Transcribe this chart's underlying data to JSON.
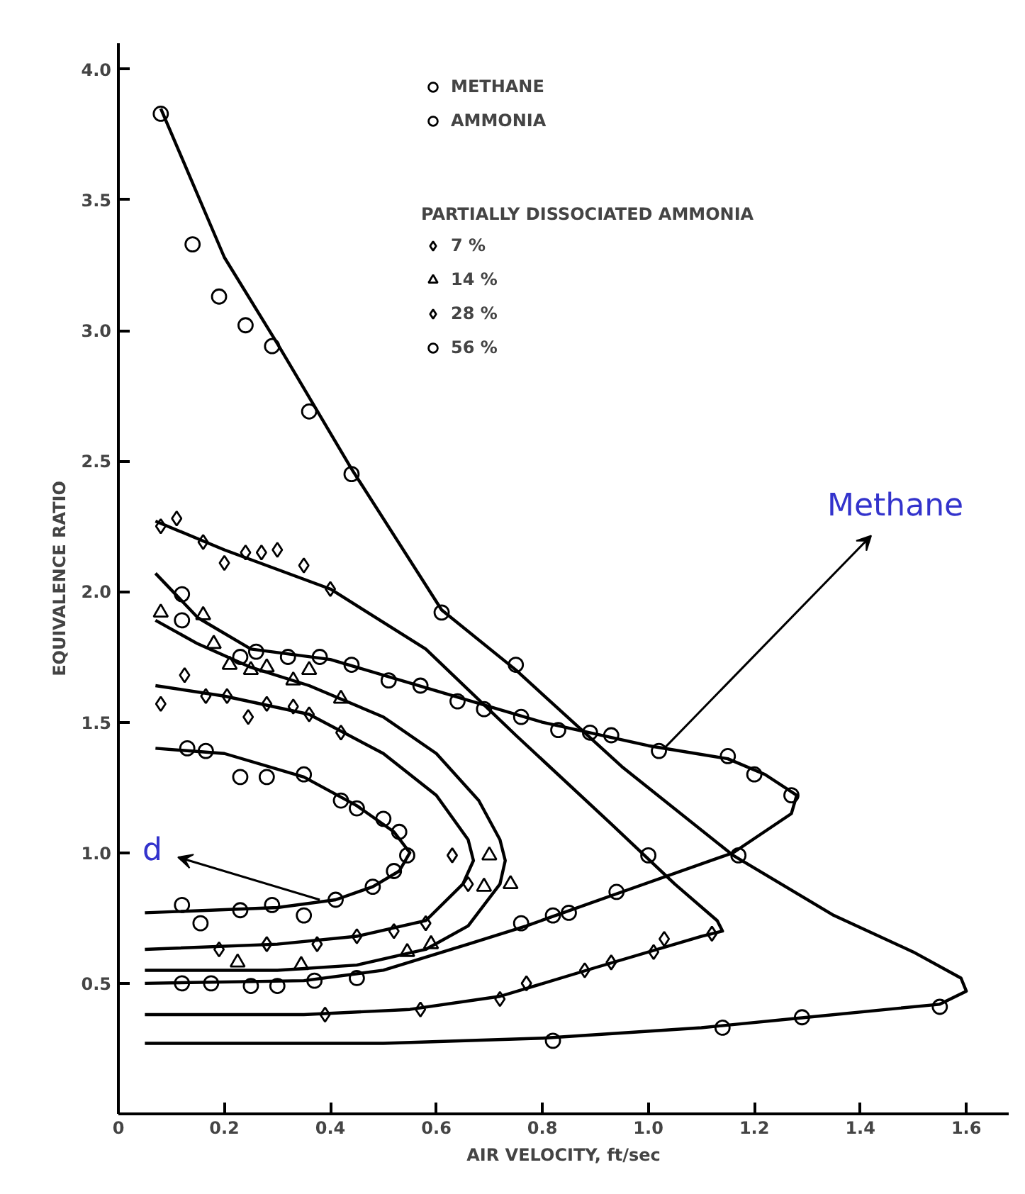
{
  "chart_data": {
    "type": "scatter",
    "xlabel": "AIR VELOCITY, ft/sec",
    "ylabel": "EQUIVALENCE RATIO",
    "legend_title": "PARTIALLY DISSOCIATED AMMONIA",
    "legend": "top",
    "grid": false,
    "xlim": [
      0,
      1.68
    ],
    "ylim": [
      0,
      4.1
    ],
    "xticks": [
      {
        "value": 0,
        "label": "0"
      },
      0.2,
      0.4,
      0.6,
      0.8,
      {
        "value": 1.0,
        "label": "1.0"
      },
      1.2,
      1.4,
      1.6
    ],
    "yticks": [
      0.5,
      {
        "value": 1.0,
        "label": "1.0"
      },
      1.5,
      {
        "value": 2.0,
        "label": "2.0"
      },
      2.5,
      {
        "value": 3.0,
        "label": "3.0"
      },
      3.5,
      {
        "value": 4.0,
        "label": "4.0"
      }
    ],
    "annotations": [
      {
        "text": "Methane",
        "x": 1.03,
        "y": 1.4
      },
      {
        "text": "d",
        "x": 0.38,
        "y": 0.82
      }
    ],
    "series": [
      {
        "name": "METHANE",
        "color": "#000000",
        "marker": "circle",
        "x": [
          0.12,
          0.12,
          0.23,
          0.26,
          0.32,
          0.38,
          0.44,
          0.51,
          0.57,
          0.64,
          0.69,
          0.76,
          0.83,
          0.89,
          0.93,
          1.02,
          1.15,
          1.2,
          1.27,
          1.17,
          0.94,
          0.85,
          0.82,
          0.76,
          0.45,
          0.37,
          0.3,
          0.25,
          0.175,
          0.12
        ],
        "values": [
          1.99,
          1.89,
          1.75,
          1.77,
          1.75,
          1.75,
          1.72,
          1.66,
          1.64,
          1.58,
          1.55,
          1.52,
          1.47,
          1.46,
          1.45,
          1.39,
          1.37,
          1.3,
          1.22,
          0.99,
          0.85,
          0.77,
          0.76,
          0.73,
          0.52,
          0.51,
          0.49,
          0.49,
          0.5,
          0.5
        ]
      },
      {
        "name": "AMMONIA",
        "color": "#000000",
        "marker": "circle",
        "x": [
          0.13,
          0.165,
          0.23,
          0.28,
          0.35,
          0.42,
          0.45,
          0.5,
          0.53,
          0.545,
          0.52,
          0.48,
          0.41,
          0.35,
          0.29,
          0.23,
          0.155,
          0.12
        ],
        "values": [
          1.4,
          1.39,
          1.29,
          1.29,
          1.3,
          1.2,
          1.17,
          1.13,
          1.08,
          0.99,
          0.93,
          0.87,
          0.82,
          0.76,
          0.8,
          0.78,
          0.73,
          0.8
        ]
      },
      {
        "name": "7 %",
        "color": "#000000",
        "marker": "diamond",
        "x": [
          0.08,
          0.125,
          0.165,
          0.205,
          0.245,
          0.28,
          0.33,
          0.36,
          0.42,
          0.63,
          0.66,
          0.58,
          0.52,
          0.45,
          0.375,
          0.28,
          0.19
        ],
        "values": [
          1.57,
          1.68,
          1.6,
          1.6,
          1.52,
          1.57,
          1.56,
          1.53,
          1.46,
          0.99,
          0.88,
          0.73,
          0.7,
          0.68,
          0.65,
          0.65,
          0.63
        ]
      },
      {
        "name": "14 %",
        "color": "#000000",
        "marker": "triangle",
        "x": [
          0.08,
          0.16,
          0.18,
          0.21,
          0.25,
          0.28,
          0.33,
          0.36,
          0.42,
          0.7,
          0.74,
          0.69,
          0.59,
          0.545,
          0.345,
          0.225
        ],
        "values": [
          1.92,
          1.91,
          1.8,
          1.72,
          1.7,
          1.71,
          1.66,
          1.7,
          1.59,
          0.99,
          0.88,
          0.87,
          0.65,
          0.62,
          0.57,
          0.58
        ]
      },
      {
        "name": "28 %",
        "color": "#000000",
        "marker": "diamond",
        "x": [
          0.08,
          0.11,
          0.16,
          0.2,
          0.24,
          0.27,
          0.3,
          0.35,
          0.4,
          1.12,
          1.03,
          1.01,
          0.93,
          0.88,
          0.77,
          0.72,
          0.57,
          0.39
        ],
        "values": [
          2.25,
          2.28,
          2.19,
          2.11,
          2.15,
          2.15,
          2.16,
          2.1,
          2.01,
          0.69,
          0.67,
          0.62,
          0.58,
          0.55,
          0.5,
          0.44,
          0.4,
          0.38
        ]
      },
      {
        "name": "56 %",
        "color": "#000000",
        "marker": "circle",
        "x": [
          0.08,
          0.14,
          0.19,
          0.24,
          0.29,
          0.36,
          0.44,
          0.61,
          0.75,
          1.0,
          1.55,
          1.29,
          1.14,
          0.82
        ],
        "values": [
          3.83,
          3.33,
          3.13,
          3.02,
          2.94,
          2.69,
          2.45,
          1.92,
          1.72,
          0.99,
          0.41,
          0.37,
          0.33,
          0.28
        ]
      },
      {
        "type": "line",
        "color": "#000000",
        "marker": "none",
        "line_style": "solid",
        "x": [
          0.07,
          0.15,
          0.25,
          0.4,
          0.6,
          0.8,
          1.0,
          1.15,
          1.22,
          1.28,
          1.27,
          1.16,
          0.95,
          0.77,
          0.66,
          0.5,
          0.35,
          0.05
        ],
        "values": [
          2.07,
          1.9,
          1.78,
          1.74,
          1.62,
          1.5,
          1.41,
          1.36,
          1.3,
          1.22,
          1.15,
          1.0,
          0.85,
          0.72,
          0.65,
          0.55,
          0.51,
          0.5
        ]
      },
      {
        "type": "line",
        "color": "#000000",
        "marker": "none",
        "line_style": "solid",
        "x": [
          0.07,
          0.2,
          0.35,
          0.45,
          0.52,
          0.55,
          0.53,
          0.48,
          0.41,
          0.3,
          0.05
        ],
        "values": [
          1.4,
          1.38,
          1.29,
          1.18,
          1.08,
          1.0,
          0.93,
          0.87,
          0.82,
          0.79,
          0.77
        ]
      },
      {
        "type": "line",
        "color": "#000000",
        "marker": "none",
        "line_style": "solid",
        "x": [
          0.07,
          0.2,
          0.36,
          0.5,
          0.6,
          0.66,
          0.67,
          0.65,
          0.58,
          0.45,
          0.3,
          0.05
        ],
        "values": [
          1.64,
          1.6,
          1.53,
          1.38,
          1.22,
          1.05,
          0.97,
          0.88,
          0.74,
          0.68,
          0.65,
          0.63
        ]
      },
      {
        "type": "line",
        "color": "#000000",
        "marker": "none",
        "line_style": "solid",
        "x": [
          0.07,
          0.15,
          0.25,
          0.36,
          0.5,
          0.6,
          0.68,
          0.72,
          0.73,
          0.72,
          0.66,
          0.58,
          0.45,
          0.3,
          0.05
        ],
        "values": [
          1.89,
          1.8,
          1.71,
          1.64,
          1.52,
          1.38,
          1.2,
          1.05,
          0.97,
          0.88,
          0.72,
          0.63,
          0.57,
          0.55,
          0.55
        ]
      },
      {
        "type": "line",
        "color": "#000000",
        "marker": "none",
        "line_style": "solid",
        "x": [
          0.07,
          0.2,
          0.4,
          0.58,
          0.75,
          0.93,
          1.05,
          1.13,
          1.14,
          1.1,
          0.9,
          0.72,
          0.55,
          0.35,
          0.05
        ],
        "values": [
          2.27,
          2.16,
          2.01,
          1.78,
          1.45,
          1.11,
          0.88,
          0.74,
          0.7,
          0.68,
          0.56,
          0.45,
          0.4,
          0.38,
          0.38
        ]
      },
      {
        "type": "line",
        "color": "#000000",
        "marker": "none",
        "line_style": "solid",
        "x": [
          0.08,
          0.2,
          0.3,
          0.44,
          0.61,
          0.75,
          0.95,
          1.16,
          1.35,
          1.5,
          1.59,
          1.6,
          1.55,
          1.3,
          1.1,
          0.8,
          0.5,
          0.05
        ],
        "values": [
          3.85,
          3.28,
          2.95,
          2.47,
          1.93,
          1.7,
          1.33,
          0.99,
          0.76,
          0.62,
          0.52,
          0.47,
          0.42,
          0.37,
          0.33,
          0.29,
          0.27,
          0.27
        ]
      }
    ]
  }
}
